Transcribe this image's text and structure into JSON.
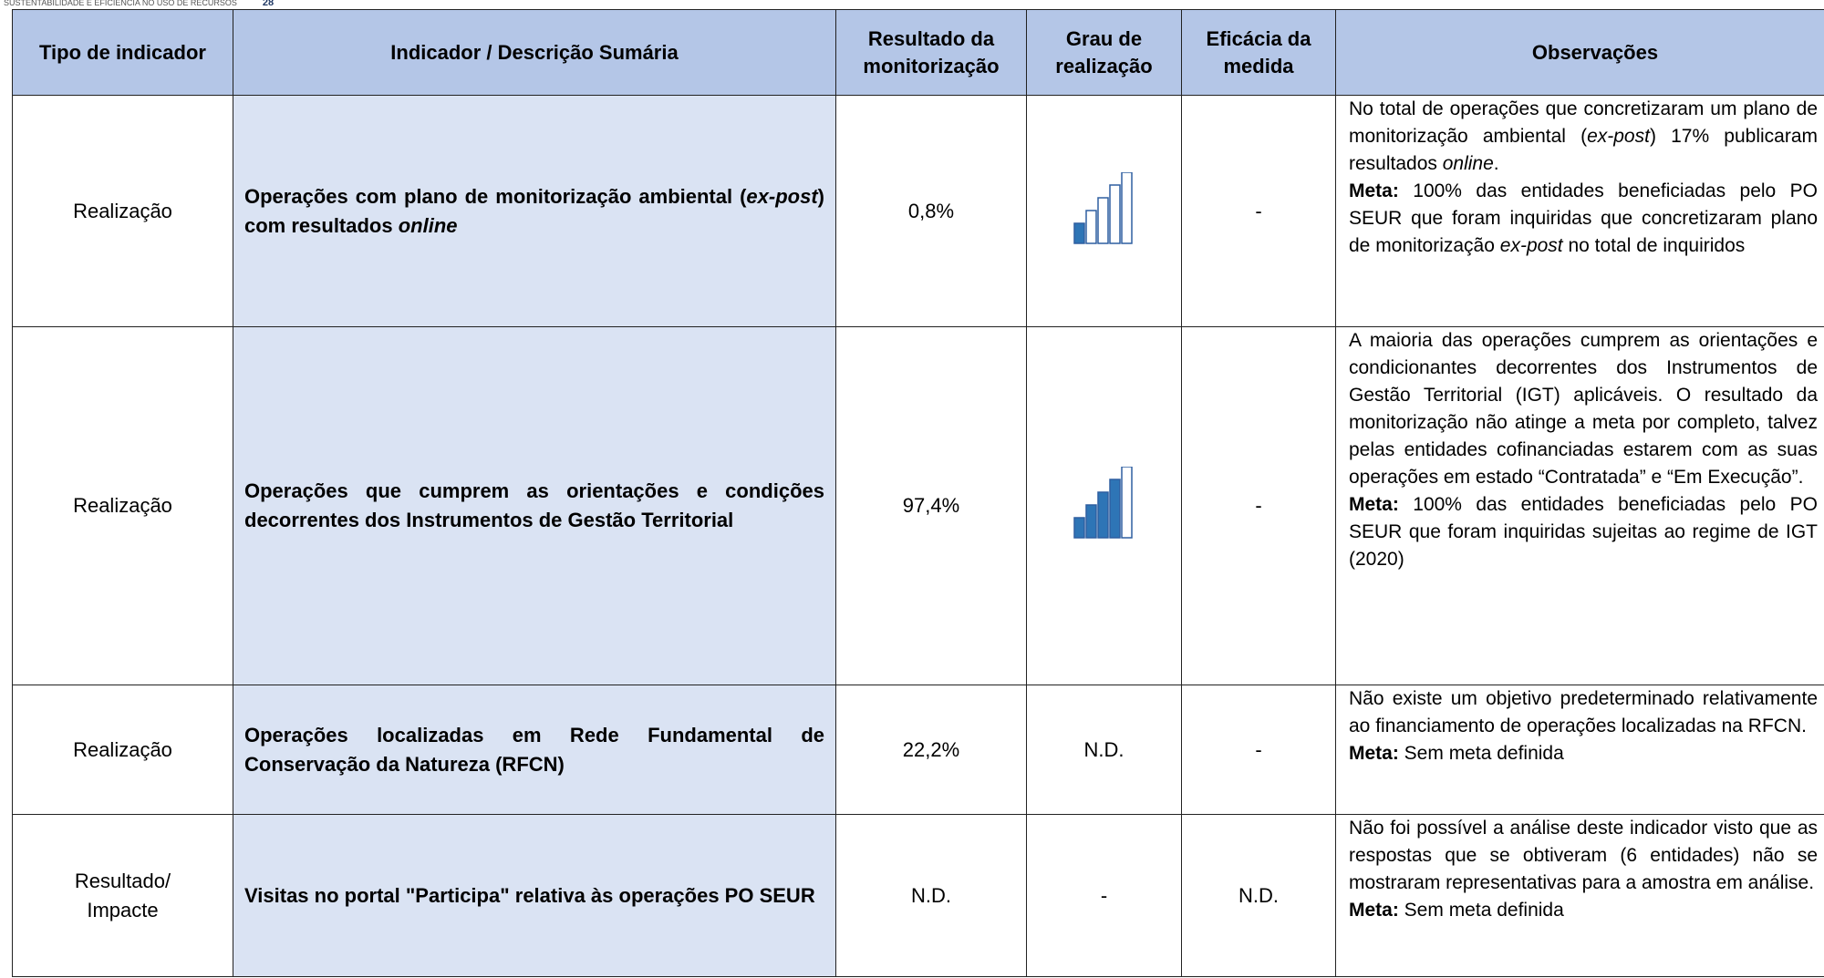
{
  "header": {
    "section": "SUSTENTABILIDADE E EFICIÊNCIA NO USO DE RECURSOS",
    "page": "28"
  },
  "table": {
    "columns": [
      "Tipo de indicador",
      "Indicador / Descrição Sumária",
      "Resultado da monitorização",
      "Grau de realização",
      "Eficácia da medida",
      "Observações"
    ],
    "rows": [
      {
        "tipo": "Realização",
        "indicador": [
          {
            "text": "Operações com plano de monitorização ambiental ("
          },
          {
            "text": "ex-post",
            "italic": true
          },
          {
            "text": ") com resultados "
          },
          {
            "text": "online",
            "italic": true
          }
        ],
        "resultado": "0,8%",
        "grau_bars_filled": 1,
        "eficacia": "-",
        "observacoes": [
          [
            {
              "text": "No total de operações que concretizaram um plano de monitorização ambiental ("
            },
            {
              "text": "ex-post",
              "italic": true
            },
            {
              "text": ") 17% publicaram resultados "
            },
            {
              "text": "online",
              "italic": true
            },
            {
              "text": "."
            }
          ],
          [
            {
              "text": "Meta:",
              "bold": true
            },
            {
              "text": " 100% das entidades beneficiadas pelo PO SEUR que foram inquiridas que concretizaram plano de monitorização "
            },
            {
              "text": "ex-post",
              "italic": true
            },
            {
              "text": " no total de inquiridos"
            }
          ]
        ]
      },
      {
        "tipo": "Realização",
        "indicador": [
          {
            "text": "Operações que cumprem as orientações e condições decorrentes dos Instrumentos de Gestão Territorial"
          }
        ],
        "resultado": "97,4%",
        "grau_bars_filled": 4,
        "eficacia": "-",
        "observacoes": [
          [
            {
              "text": "A maioria das operações cumprem as orientações e condicionantes decorrentes dos Instrumentos de Gestão Territorial (IGT) aplicáveis. O resultado da monitorização não atinge a meta por completo, talvez pelas entidades cofinanciadas estarem com as suas operações em estado “Contratada” e “Em Execução”."
            }
          ],
          [
            {
              "text": "Meta:",
              "bold": true
            },
            {
              "text": " 100% das entidades beneficiadas pelo PO SEUR que foram inquiridas sujeitas ao regime de IGT (2020)"
            }
          ]
        ]
      },
      {
        "tipo": "Realização",
        "indicador": [
          {
            "text": "Operações localizadas em Rede Fundamental de Conservação da Natureza (RFCN)"
          }
        ],
        "resultado": "22,2%",
        "grau": "N.D.",
        "eficacia": "-",
        "observacoes": [
          [
            {
              "text": "Não existe um objetivo predeterminado relativamente ao financiamento de operações localizadas na RFCN."
            }
          ],
          [
            {
              "text": "Meta:",
              "bold": true
            },
            {
              "text": " Sem meta definida"
            }
          ]
        ]
      },
      {
        "tipo": "Resultado/\nImpacte",
        "indicador": [
          {
            "text": "Visitas no portal \"Participa\" relativa às operações PO SEUR"
          }
        ],
        "resultado": "N.D.",
        "grau": "-",
        "eficacia": "N.D.",
        "observacoes": [
          [
            {
              "text": "Não foi possível a análise deste indicador visto que as respostas que se obtiveram (6 entidades) não se mostraram representativas para a amostra em análise."
            }
          ],
          [
            {
              "text": "Meta:",
              "bold": true
            },
            {
              "text": " Sem meta definida"
            }
          ]
        ]
      }
    ]
  }
}
